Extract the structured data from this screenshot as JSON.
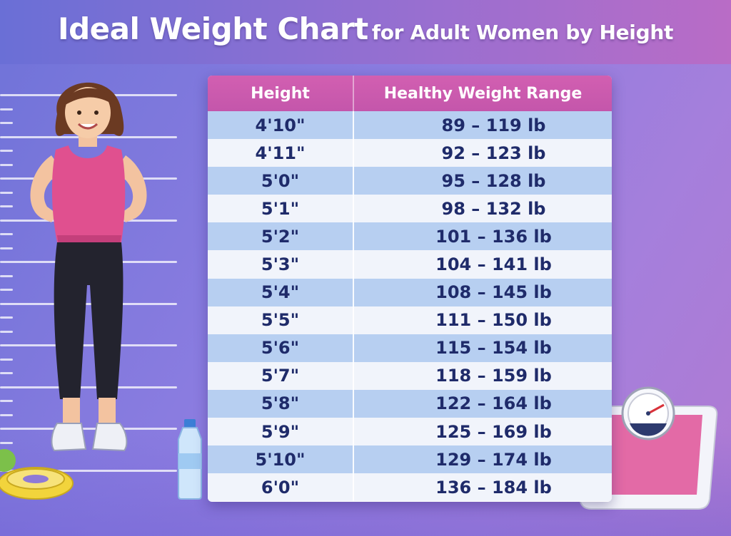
{
  "title": {
    "main": "Ideal Weight Chart",
    "sub": "for Adult Women by Height"
  },
  "colors": {
    "header_bg": "#c95aae",
    "row_odd": "#b7cff1",
    "row_even": "#f1f4fb",
    "text": "#1f2b6a",
    "background": "#8a7ce0"
  },
  "chart_data": {
    "type": "table",
    "title": "Ideal Weight Chart for Adult Women by Height",
    "columns": [
      "Height",
      "Healthy Weight Range"
    ],
    "rows": [
      {
        "height": "4'10\"",
        "range": "89 – 119 lb",
        "min_lb": 89,
        "max_lb": 119
      },
      {
        "height": "4'11\"",
        "range": "92 – 123 lb",
        "min_lb": 92,
        "max_lb": 123
      },
      {
        "height": "5'0\"",
        "range": "95 – 128 lb",
        "min_lb": 95,
        "max_lb": 128
      },
      {
        "height": "5'1\"",
        "range": "98 – 132 lb",
        "min_lb": 98,
        "max_lb": 132
      },
      {
        "height": "5'2\"",
        "range": "101 – 136 lb",
        "min_lb": 101,
        "max_lb": 136
      },
      {
        "height": "5'3\"",
        "range": "104 – 141 lb",
        "min_lb": 104,
        "max_lb": 141
      },
      {
        "height": "5'4\"",
        "range": "108 – 145 lb",
        "min_lb": 108,
        "max_lb": 145
      },
      {
        "height": "5'5\"",
        "range": "111 – 150 lb",
        "min_lb": 111,
        "max_lb": 150
      },
      {
        "height": "5'6\"",
        "range": "115 – 154 lb",
        "min_lb": 115,
        "max_lb": 154
      },
      {
        "height": "5'7\"",
        "range": "118 – 159 lb",
        "min_lb": 118,
        "max_lb": 159
      },
      {
        "height": "5'8\"",
        "range": "122 – 164 lb",
        "min_lb": 122,
        "max_lb": 164
      },
      {
        "height": "5'9\"",
        "range": "125 – 169 lb",
        "min_lb": 125,
        "max_lb": 169
      },
      {
        "height": "5'10\"",
        "range": "129 – 174 lb",
        "min_lb": 129,
        "max_lb": 174
      },
      {
        "height": "6'0\"",
        "range": "136 – 184 lb",
        "min_lb": 136,
        "max_lb": 184
      }
    ]
  },
  "illustrations": [
    "woman-figure-icon",
    "height-ruler-icon",
    "water-bottle-icon",
    "measuring-tape-icon",
    "bathroom-scale-icon"
  ]
}
